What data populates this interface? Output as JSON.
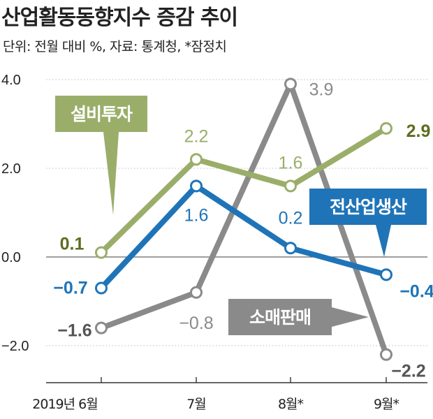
{
  "header": {
    "title": "산업활동동향지수 증감 추이",
    "subtitle": "단위: 전월 대비 %, 자료: 통계청, *잠정치"
  },
  "colors": {
    "설비투자": "#9aae6a",
    "전산업생산": "#1f74b8",
    "소매판매": "#8a8a8a",
    "bold_label_green": "#5c6e1e",
    "bold_label_blue": "#1f74b8",
    "bold_label_gray": "#555555"
  },
  "chart_data": {
    "type": "line",
    "categories": [
      "2019년 6월",
      "7월",
      "8월*",
      "9월*"
    ],
    "ylim": [
      -2.6,
      4.2
    ],
    "yticks": [
      "4.0",
      "2.0",
      "0.0",
      "−2.0"
    ],
    "ytick_values": [
      4.0,
      2.0,
      0.0,
      -2.0
    ],
    "series": [
      {
        "name": "설비투자",
        "values": [
          0.1,
          2.2,
          1.6,
          2.9
        ],
        "labels": [
          "0.1",
          "2.2",
          "1.6",
          "2.9"
        ]
      },
      {
        "name": "전산업생산",
        "values": [
          -0.7,
          1.6,
          0.2,
          -0.4
        ],
        "labels": [
          "−0.7",
          "1.6",
          "0.2",
          "−0.4"
        ]
      },
      {
        "name": "소매판매",
        "values": [
          -1.6,
          -0.8,
          3.9,
          -2.2
        ],
        "labels": [
          "−1.6",
          "−0.8",
          "3.9",
          "−2.2"
        ]
      }
    ]
  }
}
